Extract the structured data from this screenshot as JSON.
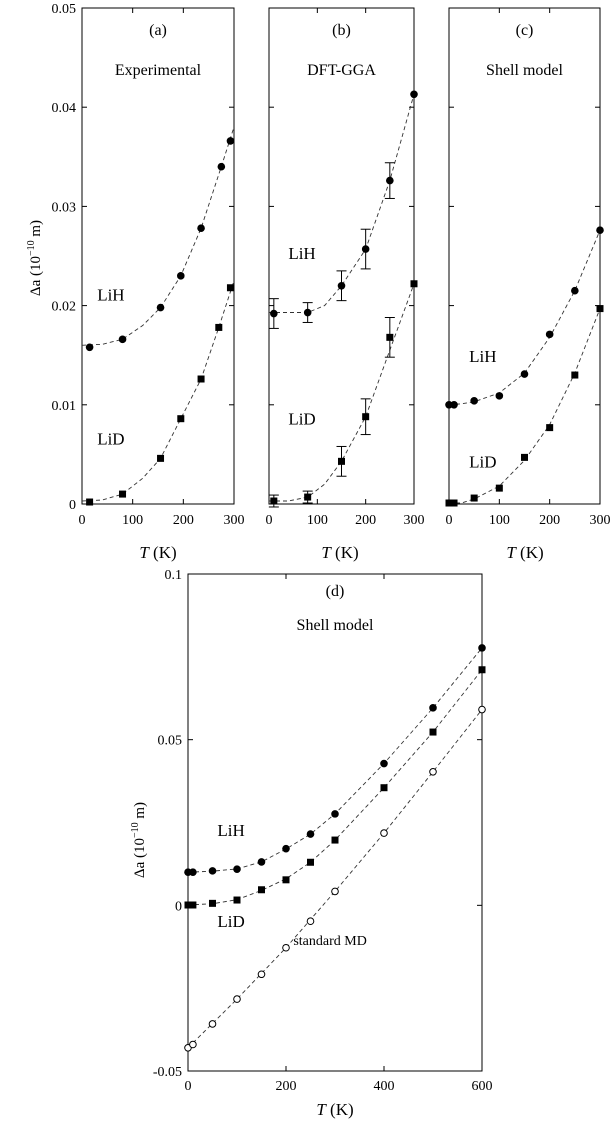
{
  "figure": {
    "y_axis_label": "Δa (10",
    "y_axis_exp": "−10",
    "y_axis_unit": " m)",
    "x_axis_var": "T",
    "x_axis_unit": " (K)"
  },
  "chart_data": [
    {
      "type": "scatter",
      "panel": "(a)",
      "title": "Experimental",
      "xlabel": "T (K)",
      "ylabel": "Δa (10^-10 m)",
      "xlim": [
        0,
        300
      ],
      "ylim": [
        0,
        0.05
      ],
      "xticks": [
        "0",
        "100",
        "200",
        "300"
      ],
      "yticks": [
        "0",
        "0.01",
        "0.02",
        "0.03",
        "0.04",
        "0.05"
      ],
      "series": [
        {
          "name": "LiH",
          "marker": "filled-circle",
          "x": [
            15,
            80,
            155,
            195,
            235,
            275,
            293
          ],
          "y": [
            0.0158,
            0.0166,
            0.0198,
            0.023,
            0.0278,
            0.034,
            0.0366
          ],
          "fit": [
            [
              0,
              0.016
            ],
            [
              40,
              0.0161
            ],
            [
              80,
              0.0166
            ],
            [
              120,
              0.018
            ],
            [
              155,
              0.0198
            ],
            [
              195,
              0.023
            ],
            [
              235,
              0.0278
            ],
            [
              275,
              0.034
            ],
            [
              300,
              0.038
            ]
          ]
        },
        {
          "name": "LiD",
          "marker": "filled-square",
          "x": [
            15,
            80,
            155,
            195,
            235,
            270,
            293
          ],
          "y": [
            0.0002,
            0.001,
            0.0046,
            0.0086,
            0.0126,
            0.0178,
            0.0218
          ],
          "fit": [
            [
              0,
              0.0003
            ],
            [
              40,
              0.0004
            ],
            [
              80,
              0.001
            ],
            [
              120,
              0.0026
            ],
            [
              155,
              0.0046
            ],
            [
              195,
              0.0086
            ],
            [
              235,
              0.0126
            ],
            [
              270,
              0.0178
            ],
            [
              300,
              0.0225
            ]
          ]
        }
      ],
      "annotations": [
        {
          "text": "LiH",
          "x": 30,
          "y": 0.0205
        },
        {
          "text": "LiD",
          "x": 30,
          "y": 0.006
        }
      ]
    },
    {
      "type": "scatter",
      "panel": "(b)",
      "title": "DFT-GGA",
      "xlabel": "T (K)",
      "ylabel": "",
      "xlim": [
        0,
        300
      ],
      "ylim": [
        0,
        0.05
      ],
      "xticks": [
        "0",
        "100",
        "200",
        "300"
      ],
      "series": [
        {
          "name": "LiH",
          "marker": "filled-circle",
          "x": [
            10,
            80,
            150,
            200,
            250,
            300
          ],
          "y": [
            0.0192,
            0.0193,
            0.022,
            0.0257,
            0.0326,
            0.0413
          ],
          "yerr": [
            0.0015,
            0.001,
            0.0015,
            0.002,
            0.0018,
            0
          ],
          "fit": [
            [
              0,
              0.0193
            ],
            [
              40,
              0.0193
            ],
            [
              80,
              0.0193
            ],
            [
              115,
              0.02
            ],
            [
              150,
              0.022
            ],
            [
              200,
              0.0257
            ],
            [
              250,
              0.0326
            ],
            [
              300,
              0.0413
            ]
          ]
        },
        {
          "name": "LiD",
          "marker": "filled-square",
          "x": [
            10,
            80,
            150,
            200,
            250,
            300
          ],
          "y": [
            0.0003,
            0.0007,
            0.0043,
            0.0088,
            0.0168,
            0.0222
          ],
          "yerr": [
            0.0006,
            0.0006,
            0.0015,
            0.0018,
            0.002,
            0
          ],
          "fit": [
            [
              0,
              0.0003
            ],
            [
              40,
              0.0003
            ],
            [
              80,
              0.0007
            ],
            [
              115,
              0.002
            ],
            [
              150,
              0.0043
            ],
            [
              200,
              0.0088
            ],
            [
              250,
              0.0155
            ],
            [
              300,
              0.0222
            ]
          ]
        }
      ],
      "annotations": [
        {
          "text": "LiH",
          "x": 40,
          "y": 0.0247
        },
        {
          "text": "LiD",
          "x": 40,
          "y": 0.008
        }
      ]
    },
    {
      "type": "scatter",
      "panel": "(c)",
      "title": "Shell model",
      "xlabel": "T (K)",
      "ylabel": "",
      "xlim": [
        0,
        300
      ],
      "ylim": [
        0,
        0.05
      ],
      "xticks": [
        "0",
        "100",
        "200",
        "300"
      ],
      "series": [
        {
          "name": "LiH",
          "marker": "filled-circle",
          "x": [
            0,
            10,
            50,
            100,
            150,
            200,
            250,
            300
          ],
          "y": [
            0.01,
            0.01,
            0.0104,
            0.0109,
            0.0131,
            0.0171,
            0.0215,
            0.0276
          ],
          "fit": [
            [
              0,
              0.01
            ],
            [
              25,
              0.0101
            ],
            [
              50,
              0.0103
            ],
            [
              100,
              0.0112
            ],
            [
              150,
              0.0132
            ],
            [
              200,
              0.0168
            ],
            [
              250,
              0.0215
            ],
            [
              300,
              0.0276
            ]
          ]
        },
        {
          "name": "LiD",
          "marker": "filled-square",
          "x": [
            0,
            10,
            50,
            100,
            150,
            200,
            250,
            300
          ],
          "y": [
            0.0001,
            0.0001,
            0.0006,
            0.0016,
            0.0047,
            0.0077,
            0.013,
            0.0197
          ],
          "fit": [
            [
              0,
              0.0001
            ],
            [
              25,
              0.0001
            ],
            [
              50,
              0.0005
            ],
            [
              100,
              0.0018
            ],
            [
              150,
              0.0044
            ],
            [
              200,
              0.008
            ],
            [
              250,
              0.0132
            ],
            [
              300,
              0.0197
            ]
          ]
        }
      ],
      "annotations": [
        {
          "text": "LiH",
          "x": 40,
          "y": 0.0143
        },
        {
          "text": "LiD",
          "x": 40,
          "y": 0.0037
        }
      ]
    },
    {
      "type": "scatter",
      "panel": "(d)",
      "title": "Shell model",
      "xlabel": "T (K)",
      "ylabel": "Δa (10^-10 m)",
      "xlim": [
        0,
        600
      ],
      "ylim": [
        -0.05,
        0.1
      ],
      "xticks": [
        "0",
        "200",
        "400",
        "600"
      ],
      "yticks": [
        "-0.05",
        "0",
        "0.05",
        "0.1"
      ],
      "series": [
        {
          "name": "LiH",
          "marker": "filled-circle",
          "x": [
            0,
            10,
            50,
            100,
            150,
            200,
            250,
            300,
            400,
            500,
            600
          ],
          "y": [
            0.01,
            0.01,
            0.0104,
            0.0109,
            0.0131,
            0.0171,
            0.0215,
            0.0276,
            0.0428,
            0.0596,
            0.0777
          ],
          "fit": [
            [
              0,
              0.01
            ],
            [
              50,
              0.0103
            ],
            [
              100,
              0.011
            ],
            [
              150,
              0.0131
            ],
            [
              200,
              0.017
            ],
            [
              250,
              0.0215
            ],
            [
              300,
              0.0276
            ],
            [
              400,
              0.0428
            ],
            [
              500,
              0.0596
            ],
            [
              600,
              0.0777
            ]
          ]
        },
        {
          "name": "LiD",
          "marker": "filled-square",
          "x": [
            0,
            10,
            50,
            100,
            150,
            200,
            250,
            300,
            400,
            500,
            600
          ],
          "y": [
            0.0001,
            0.0001,
            0.0006,
            0.0016,
            0.0047,
            0.0077,
            0.013,
            0.0197,
            0.0355,
            0.0523,
            0.0711
          ],
          "fit": [
            [
              0,
              0.0001
            ],
            [
              50,
              0.0005
            ],
            [
              100,
              0.0017
            ],
            [
              150,
              0.0045
            ],
            [
              200,
              0.008
            ],
            [
              250,
              0.013
            ],
            [
              300,
              0.0197
            ],
            [
              400,
              0.0355
            ],
            [
              500,
              0.0523
            ],
            [
              600,
              0.0711
            ]
          ]
        },
        {
          "name": "standard MD",
          "marker": "open-circle",
          "x": [
            0,
            10,
            50,
            100,
            150,
            200,
            250,
            300,
            400,
            500,
            600
          ],
          "y": [
            -0.043,
            -0.042,
            -0.0358,
            -0.0283,
            -0.0208,
            -0.0128,
            -0.0048,
            0.0042,
            0.0218,
            0.0403,
            0.0591
          ],
          "fit": [
            [
              0,
              -0.043
            ],
            [
              100,
              -0.0283
            ],
            [
              200,
              -0.0128
            ],
            [
              300,
              0.0042
            ],
            [
              400,
              0.0218
            ],
            [
              500,
              0.0403
            ],
            [
              600,
              0.0591
            ]
          ]
        }
      ],
      "annotations": [
        {
          "text": "LiH",
          "x": 60,
          "y": 0.021
        },
        {
          "text": "LiD",
          "x": 60,
          "y": -0.0065
        },
        {
          "text": "standard MD",
          "x": 215,
          "y": -0.012
        }
      ]
    }
  ]
}
